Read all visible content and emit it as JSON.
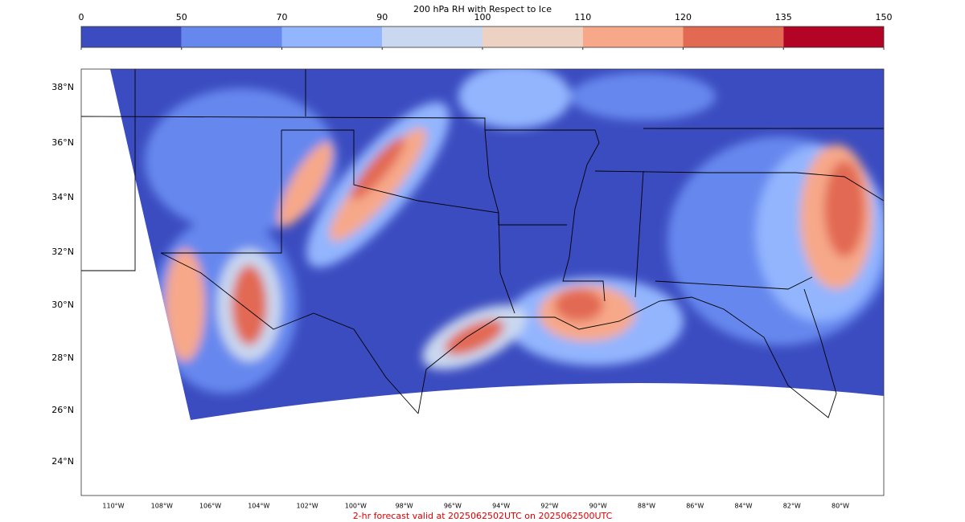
{
  "colorbar": {
    "title": "200 hPa RH with Respect to Ice",
    "ticks": [
      0,
      50,
      70,
      90,
      100,
      110,
      120,
      135,
      150
    ],
    "colors": [
      "#3b4cc0",
      "#6688ee",
      "#93b5fe",
      "#c9d7f0",
      "#edd1c2",
      "#f7a889",
      "#e26952",
      "#b40426"
    ]
  },
  "map": {
    "lat_labels": [
      "38°N",
      "36°N",
      "34°N",
      "32°N",
      "30°N",
      "28°N",
      "26°N",
      "24°N"
    ],
    "lon_labels": [
      "110°W",
      "108°W",
      "106°W",
      "104°W",
      "102°W",
      "100°W",
      "98°W",
      "96°W",
      "94°W",
      "92°W",
      "90°W",
      "88°W",
      "86°W",
      "84°W",
      "82°W",
      "80°W"
    ],
    "footer": "2-hr forecast valid at 2025062502UTC on 2025062500UTC"
  }
}
